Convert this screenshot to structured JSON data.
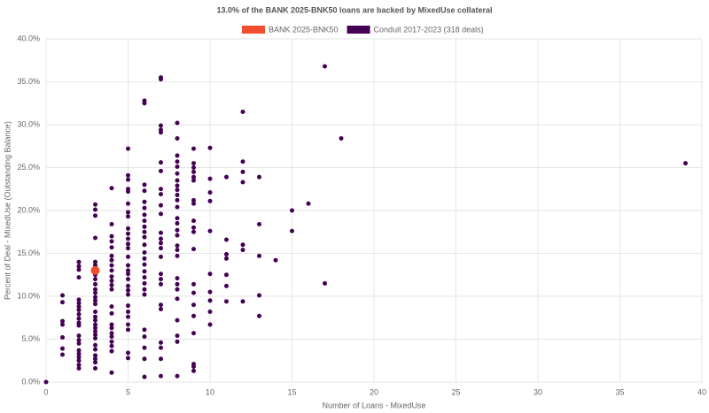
{
  "chart_data": {
    "type": "scatter",
    "title": "13.0% of the BANK 2025-BNK50 loans are backed by MixedUse collateral",
    "x_label": "Number of Loans - MixedUse",
    "y_label": "Percent of Deal - MixedUse (Outstanding Balance)",
    "xlim": [
      0,
      40
    ],
    "xticks": [
      0,
      5,
      10,
      15,
      20,
      25,
      30,
      35,
      40
    ],
    "ylim": [
      0,
      40
    ],
    "yticks": [
      {
        "value": 0,
        "label": "0.0%"
      },
      {
        "value": 5,
        "label": "5.0%"
      },
      {
        "value": 10,
        "label": "10.0%"
      },
      {
        "value": 15,
        "label": "15.0%"
      },
      {
        "value": 20,
        "label": "20.0%"
      },
      {
        "value": 25,
        "label": "25.0%"
      },
      {
        "value": 30,
        "label": "30.0%"
      },
      {
        "value": 35,
        "label": "35.0%"
      },
      {
        "value": 40,
        "label": "40.0%"
      }
    ],
    "grid": true,
    "series": [
      {
        "name": "BANK 2025-BNK50",
        "color": "#f04e2e",
        "x": [
          3
        ],
        "values": [
          13.0
        ]
      },
      {
        "name": "Conduit 2017-2023 (318 deals)",
        "color": "#440154",
        "x": [
          0,
          1,
          1,
          1,
          1,
          1,
          1,
          1,
          2,
          2,
          2,
          2,
          2,
          2,
          2,
          2,
          2,
          2,
          2,
          2,
          2,
          2,
          2,
          2,
          2,
          2,
          2,
          2,
          2,
          3,
          3,
          3,
          3,
          3,
          3,
          3,
          3,
          3,
          3,
          3,
          3,
          3,
          3,
          3,
          3,
          3,
          3,
          3,
          3,
          3,
          3,
          3,
          3,
          3,
          3,
          3,
          3,
          4,
          4,
          4,
          4,
          4,
          4,
          4,
          4,
          4,
          4,
          4,
          4,
          4,
          4,
          4,
          4,
          4,
          4,
          4,
          4,
          4,
          4,
          4,
          5,
          5,
          5,
          5,
          5,
          5,
          5,
          5,
          5,
          5,
          5,
          5,
          5,
          5,
          5,
          5,
          5,
          5,
          5,
          5,
          5,
          5,
          5,
          5,
          5,
          5,
          5,
          5,
          6,
          6,
          6,
          6,
          6,
          6,
          6,
          6,
          6,
          6,
          6,
          6,
          6,
          6,
          6,
          6,
          6,
          6,
          6,
          6,
          6,
          6,
          6,
          6,
          6,
          7,
          7,
          7,
          7,
          7,
          7,
          7,
          7,
          7,
          7,
          7,
          7,
          7,
          7,
          7,
          7,
          7,
          7,
          7,
          7,
          7,
          7,
          7,
          7,
          7,
          8,
          8,
          8,
          8,
          8,
          8,
          8,
          8,
          8,
          8,
          8,
          8,
          8,
          8,
          8,
          8,
          8,
          8,
          8,
          8,
          8,
          8,
          8,
          8,
          8,
          8,
          8,
          9,
          9,
          9,
          9,
          9,
          9,
          9,
          9,
          9,
          9,
          9,
          9,
          9,
          9,
          9,
          9,
          9,
          9,
          9,
          9,
          10,
          10,
          10,
          10,
          10,
          10,
          10,
          10,
          10,
          10,
          11,
          11,
          11,
          11,
          11,
          11,
          11,
          12,
          12,
          12,
          12,
          12,
          12,
          12,
          13,
          13,
          13,
          13,
          13,
          14,
          15,
          15,
          16,
          17,
          17,
          18,
          39
        ],
        "values": [
          0,
          10.1,
          9.3,
          7.1,
          6.7,
          5.2,
          3.9,
          3.2,
          14.0,
          13.5,
          13.1,
          12.2,
          9.6,
          9.2,
          8.8,
          8.4,
          7.9,
          7.4,
          6.9,
          6.6,
          5.4,
          4.9,
          4.5,
          3.7,
          3.3,
          2.9,
          2.5,
          2.0,
          1.6,
          20.7,
          20.1,
          19.4,
          16.8,
          14.0,
          13.6,
          12.5,
          12.0,
          11.4,
          10.8,
          10.4,
          9.9,
          9.5,
          9.1,
          8.2,
          7.6,
          7.2,
          6.7,
          6.3,
          5.9,
          5.5,
          5.1,
          4.3,
          3.8,
          3.1,
          2.7,
          2.3,
          1.6,
          22.6,
          18.4,
          17.0,
          16.4,
          15.7,
          14.7,
          14.2,
          13.6,
          13.0,
          12.3,
          11.8,
          11.3,
          10.8,
          8.8,
          8.0,
          6.7,
          6.3,
          5.7,
          5.3,
          4.7,
          4.2,
          3.6,
          1.1,
          27.2,
          24.1,
          23.6,
          22.5,
          22.2,
          20.8,
          19.8,
          19.3,
          17.9,
          17.3,
          16.7,
          16.1,
          15.6,
          14.6,
          13.6,
          13.0,
          12.6,
          12.0,
          11.2,
          10.7,
          10.2,
          8.9,
          8.2,
          7.6,
          6.7,
          6.1,
          3.4,
          2.8,
          32.8,
          32.5,
          23.0,
          22.3,
          21.0,
          20.3,
          19.5,
          18.8,
          18.1,
          17.5,
          16.9,
          16.0,
          15.1,
          14.4,
          13.7,
          12.9,
          12.2,
          11.5,
          10.8,
          10.2,
          6.1,
          5.3,
          4.0,
          2.7,
          0.6,
          35.5,
          35.3,
          29.9,
          29.4,
          29.1,
          25.6,
          24.6,
          22.5,
          21.9,
          20.6,
          19.6,
          17.4,
          16.7,
          16.2,
          15.6,
          14.6,
          12.6,
          12.0,
          11.4,
          9.0,
          8.5,
          4.6,
          4.0,
          2.7,
          0.7,
          30.2,
          28.4,
          26.4,
          25.7,
          25.1,
          24.3,
          23.5,
          22.9,
          22.4,
          21.8,
          21.2,
          20.4,
          19.1,
          18.5,
          17.7,
          17.1,
          15.9,
          15.4,
          14.7,
          12.1,
          11.4,
          10.8,
          9.7,
          7.2,
          5.4,
          4.7,
          0.7,
          27.2,
          25.5,
          25.0,
          24.5,
          23.9,
          23.5,
          21.2,
          20.8,
          18.8,
          18.0,
          17.5,
          15.5,
          11.4,
          10.4,
          9.0,
          7.7,
          5.7,
          2.1,
          1.8,
          1.3,
          27.3,
          23.7,
          22.1,
          21.1,
          17.6,
          12.6,
          10.5,
          9.5,
          8.2,
          6.7,
          23.9,
          16.6,
          14.9,
          14.4,
          12.5,
          11.2,
          9.4,
          31.5,
          25.7,
          24.5,
          23.3,
          16.0,
          15.4,
          9.4,
          23.9,
          18.4,
          14.7,
          10.1,
          7.7,
          14.2,
          20.0,
          17.6,
          20.8,
          36.8,
          11.5,
          28.4,
          25.5
        ]
      }
    ]
  }
}
